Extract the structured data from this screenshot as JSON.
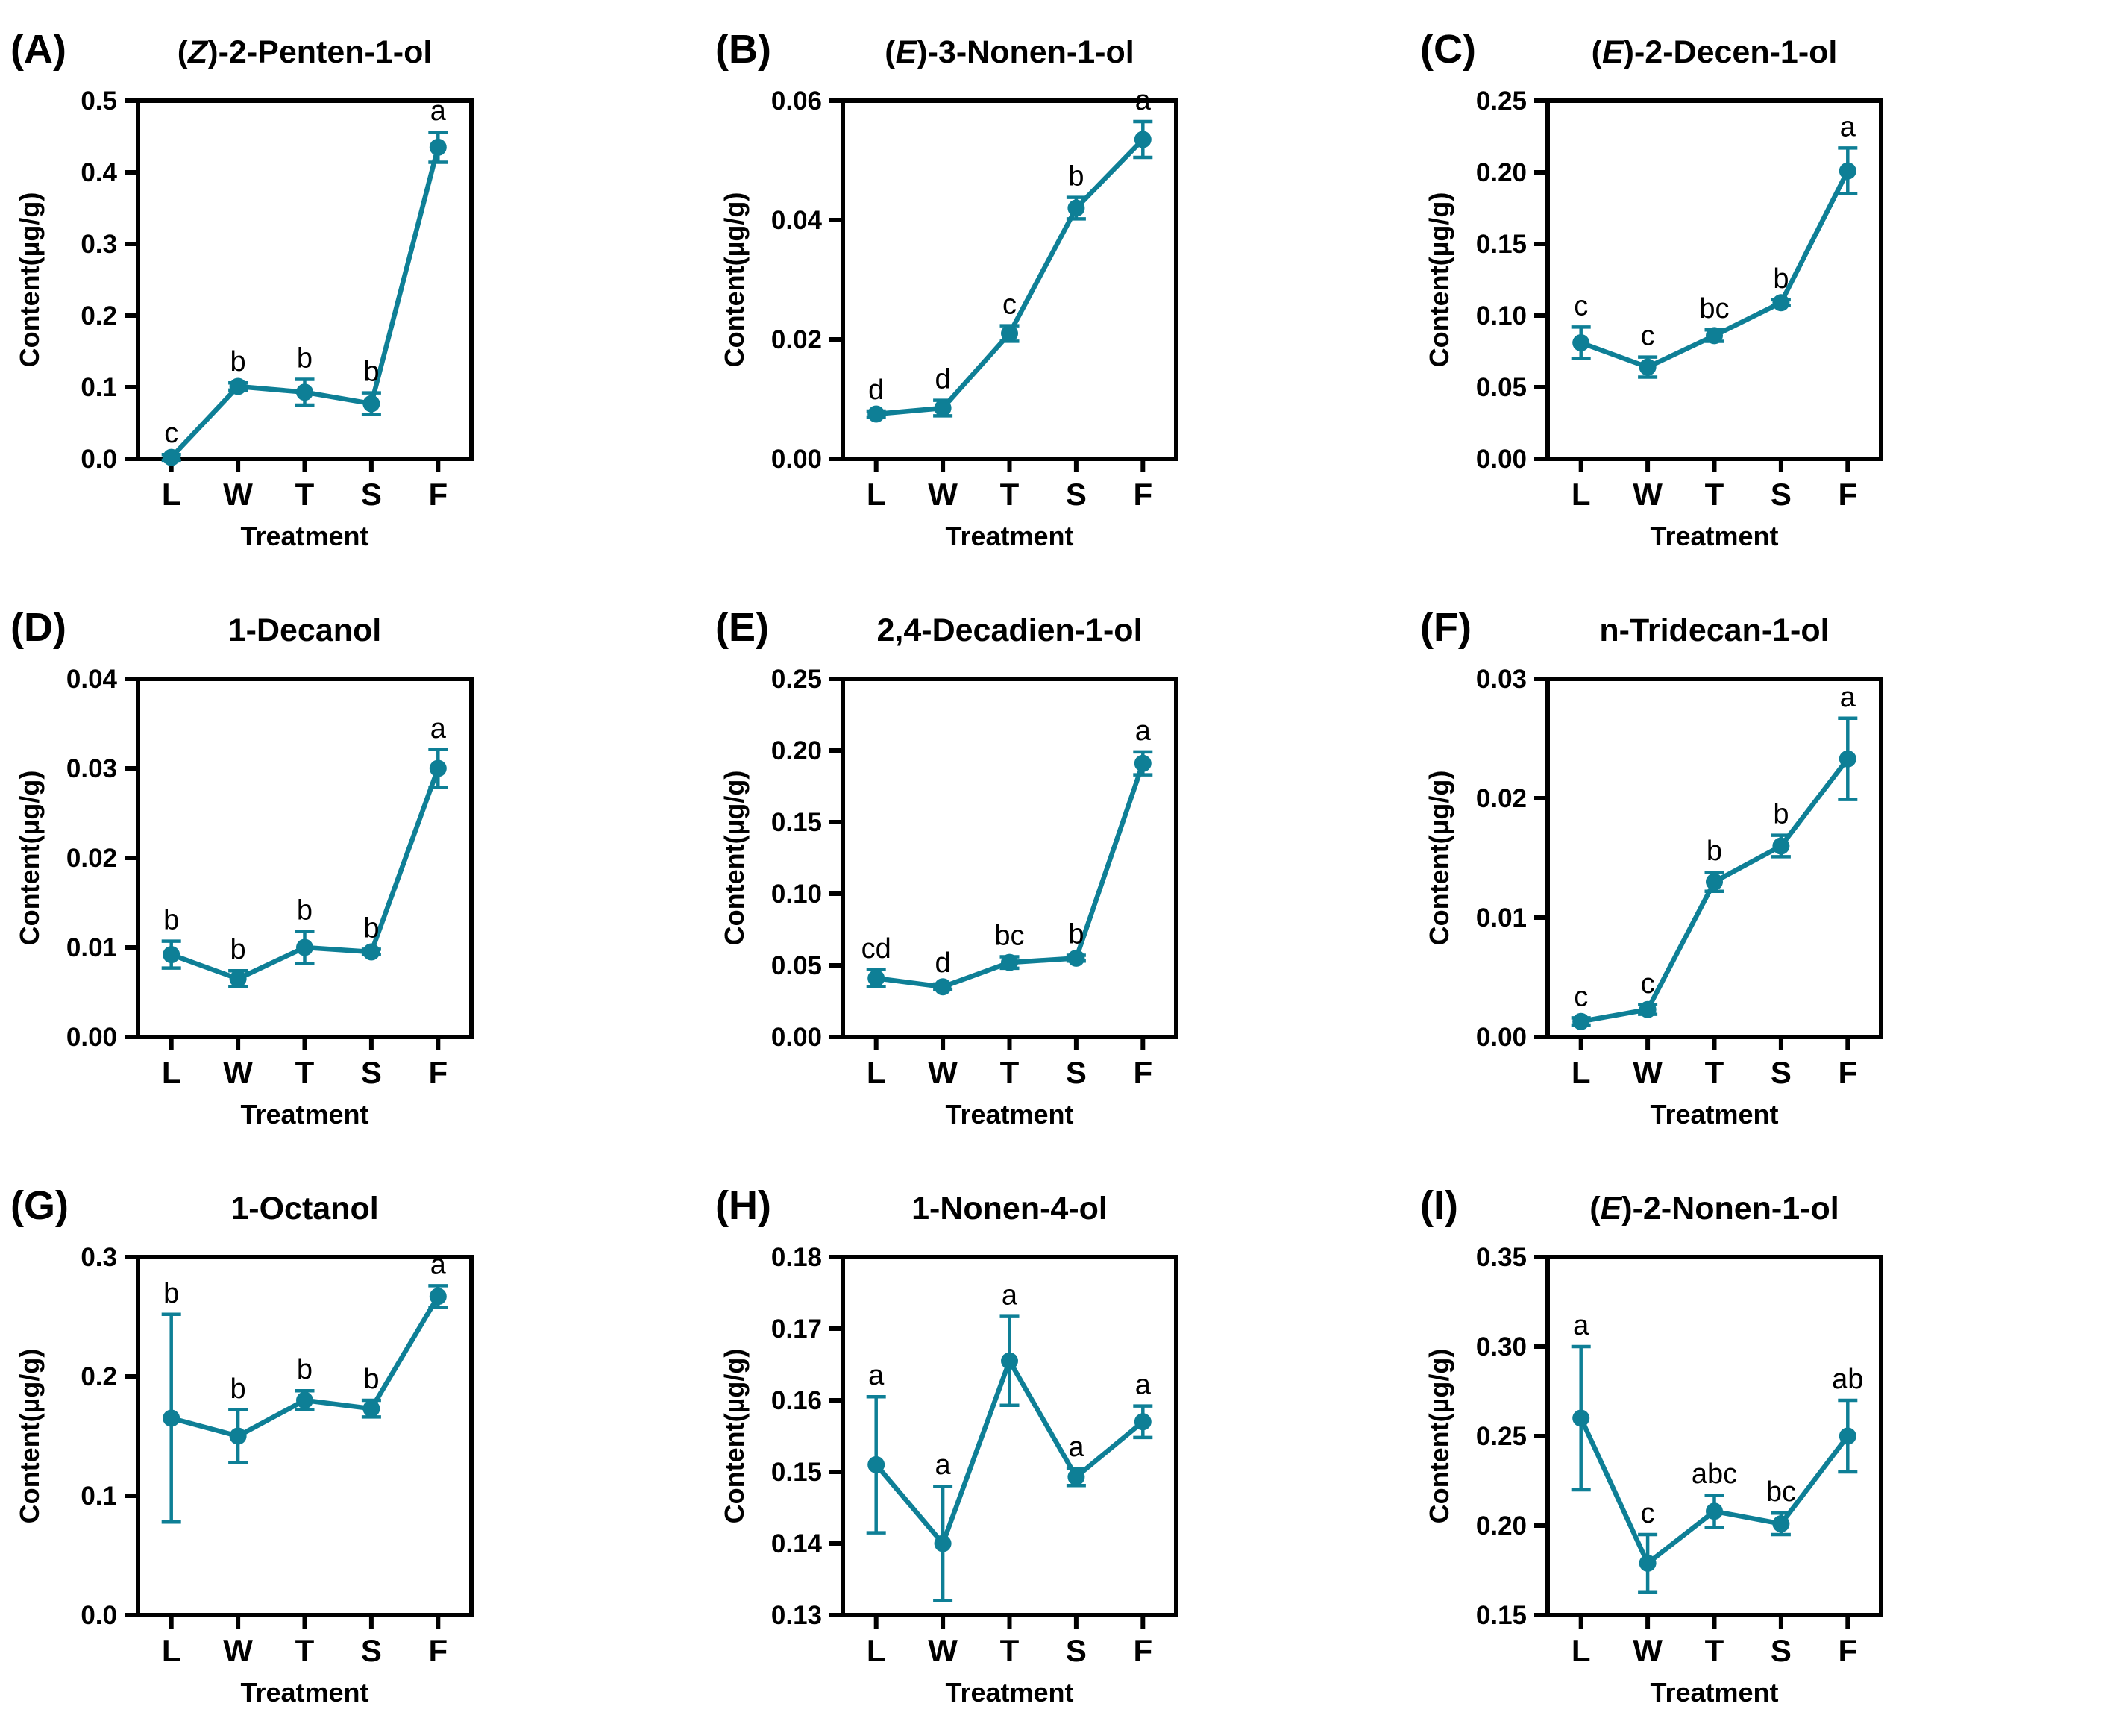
{
  "figure": {
    "background": "#ffffff",
    "text_color": "#000000",
    "accent_color": "#0e7f96",
    "xlabel": "Treatment",
    "ylabel": "Content(µg/g)",
    "categories": [
      "L",
      "W",
      "T",
      "S",
      "F"
    ]
  },
  "chart_data": [
    {
      "type": "line",
      "panel_label": "(A)",
      "title": [
        {
          "text": "(",
          "italic": false
        },
        {
          "text": "Z",
          "italic": true
        },
        {
          "text": ")-2-Penten-1-ol",
          "italic": false
        }
      ],
      "xlabel": "Treatment",
      "ylabel": "Content(µg/g)",
      "categories": [
        "L",
        "W",
        "T",
        "S",
        "F"
      ],
      "values": [
        0.002,
        0.101,
        0.093,
        0.077,
        0.435
      ],
      "errors": [
        0.004,
        0.005,
        0.018,
        0.015,
        0.021
      ],
      "sig_letters": [
        "c",
        "b",
        "b",
        "b",
        "a"
      ],
      "ylim": [
        0,
        0.5
      ],
      "yticks": [
        0,
        0.1,
        0.2,
        0.3,
        0.4,
        0.5
      ],
      "ytick_decimals": 1,
      "legend": "none",
      "grid": false
    },
    {
      "type": "line",
      "panel_label": "(B)",
      "title": [
        {
          "text": "(",
          "italic": false
        },
        {
          "text": "E",
          "italic": true
        },
        {
          "text": ")-3-Nonen-1-ol",
          "italic": false
        }
      ],
      "xlabel": "Treatment",
      "ylabel": "Content(µg/g)",
      "categories": [
        "L",
        "W",
        "T",
        "S",
        "F"
      ],
      "values": [
        0.0075,
        0.0085,
        0.021,
        0.042,
        0.0535
      ],
      "errors": [
        0.0005,
        0.0013,
        0.0013,
        0.0018,
        0.003
      ],
      "sig_letters": [
        "d",
        "d",
        "c",
        "b",
        "a"
      ],
      "ylim": [
        0,
        0.06
      ],
      "yticks": [
        0,
        0.02,
        0.04,
        0.06
      ],
      "ytick_decimals": 2,
      "legend": "none",
      "grid": false
    },
    {
      "type": "line",
      "panel_label": "(C)",
      "title": [
        {
          "text": "(",
          "italic": false
        },
        {
          "text": "E",
          "italic": true
        },
        {
          "text": ")-2-Decen-1-ol",
          "italic": false
        }
      ],
      "xlabel": "Treatment",
      "ylabel": "Content(µg/g)",
      "categories": [
        "L",
        "W",
        "T",
        "S",
        "F"
      ],
      "values": [
        0.081,
        0.064,
        0.086,
        0.109,
        0.201
      ],
      "errors": [
        0.011,
        0.007,
        0.004,
        0.002,
        0.016
      ],
      "sig_letters": [
        "c",
        "c",
        "bc",
        "b",
        "a"
      ],
      "ylim": [
        0,
        0.25
      ],
      "yticks": [
        0,
        0.05,
        0.1,
        0.15,
        0.2,
        0.25
      ],
      "ytick_decimals": 2,
      "legend": "none",
      "grid": false
    },
    {
      "type": "line",
      "panel_label": "(D)",
      "title": [
        {
          "text": "1-Decanol",
          "italic": false
        }
      ],
      "xlabel": "Treatment",
      "ylabel": "Content(µg/g)",
      "categories": [
        "L",
        "W",
        "T",
        "S",
        "F"
      ],
      "values": [
        0.0092,
        0.0065,
        0.01,
        0.0095,
        0.03
      ],
      "errors": [
        0.0015,
        0.0009,
        0.0018,
        0.0003,
        0.0021
      ],
      "sig_letters": [
        "b",
        "b",
        "b",
        "b",
        "a"
      ],
      "ylim": [
        0,
        0.04
      ],
      "yticks": [
        0,
        0.01,
        0.02,
        0.03,
        0.04
      ],
      "ytick_decimals": 2,
      "legend": "none",
      "grid": false
    },
    {
      "type": "line",
      "panel_label": "(E)",
      "title": [
        {
          "text": "2,4-Decadien-1-ol",
          "italic": false
        }
      ],
      "xlabel": "Treatment",
      "ylabel": "Content(µg/g)",
      "categories": [
        "L",
        "W",
        "T",
        "S",
        "F"
      ],
      "values": [
        0.041,
        0.035,
        0.052,
        0.055,
        0.191
      ],
      "errors": [
        0.006,
        0.002,
        0.004,
        0.002,
        0.008
      ],
      "sig_letters": [
        "cd",
        "d",
        "bc",
        "b",
        "a"
      ],
      "ylim": [
        0,
        0.25
      ],
      "yticks": [
        0,
        0.05,
        0.1,
        0.15,
        0.2,
        0.25
      ],
      "ytick_decimals": 2,
      "legend": "none",
      "grid": false
    },
    {
      "type": "line",
      "panel_label": "(F)",
      "title": [
        {
          "text": "n-Tridecan-1-ol",
          "italic": false
        }
      ],
      "xlabel": "Treatment",
      "ylabel": "Content(µg/g)",
      "categories": [
        "L",
        "W",
        "T",
        "S",
        "F"
      ],
      "values": [
        0.0013,
        0.0023,
        0.013,
        0.016,
        0.0233
      ],
      "errors": [
        0.0003,
        0.0004,
        0.0008,
        0.0009,
        0.0034
      ],
      "sig_letters": [
        "c",
        "c",
        "b",
        "b",
        "a"
      ],
      "ylim": [
        0,
        0.03
      ],
      "yticks": [
        0,
        0.01,
        0.02,
        0.03
      ],
      "ytick_decimals": 2,
      "legend": "none",
      "grid": false
    },
    {
      "type": "line",
      "panel_label": "(G)",
      "title": [
        {
          "text": "1-Octanol",
          "italic": false
        }
      ],
      "xlabel": "Treatment",
      "ylabel": "Content(µg/g)",
      "categories": [
        "L",
        "W",
        "T",
        "S",
        "F"
      ],
      "values": [
        0.165,
        0.15,
        0.18,
        0.173,
        0.267
      ],
      "errors": [
        0.087,
        0.022,
        0.008,
        0.007,
        0.009
      ],
      "sig_letters": [
        "b",
        "b",
        "b",
        "b",
        "a"
      ],
      "ylim": [
        0,
        0.3
      ],
      "yticks": [
        0,
        0.1,
        0.2,
        0.3
      ],
      "ytick_decimals": 1,
      "legend": "none",
      "grid": false
    },
    {
      "type": "line",
      "panel_label": "(H)",
      "title": [
        {
          "text": "1-Nonen-4-ol",
          "italic": false
        }
      ],
      "xlabel": "Treatment",
      "ylabel": "Content(µg/g)",
      "categories": [
        "L",
        "W",
        "T",
        "S",
        "F"
      ],
      "values": [
        0.151,
        0.14,
        0.1655,
        0.1493,
        0.157
      ],
      "errors": [
        0.0095,
        0.008,
        0.0062,
        0.0012,
        0.0022
      ],
      "sig_letters": [
        "a",
        "a",
        "a",
        "a",
        "a"
      ],
      "ylim": [
        0.13,
        0.18
      ],
      "yticks": [
        0.13,
        0.14,
        0.15,
        0.16,
        0.17,
        0.18
      ],
      "ytick_decimals": 2,
      "legend": "none",
      "grid": false
    },
    {
      "type": "line",
      "panel_label": "(I)",
      "title": [
        {
          "text": "(",
          "italic": false
        },
        {
          "text": "E",
          "italic": true
        },
        {
          "text": ")-2-Nonen-1-ol",
          "italic": false
        }
      ],
      "xlabel": "Treatment",
      "ylabel": "Content(µg/g)",
      "categories": [
        "L",
        "W",
        "T",
        "S",
        "F"
      ],
      "values": [
        0.26,
        0.179,
        0.208,
        0.201,
        0.25
      ],
      "errors": [
        0.04,
        0.016,
        0.009,
        0.006,
        0.02
      ],
      "sig_letters": [
        "a",
        "c",
        "abc",
        "bc",
        "ab"
      ],
      "ylim": [
        0.15,
        0.35
      ],
      "yticks": [
        0.15,
        0.2,
        0.25,
        0.3,
        0.35
      ],
      "ytick_decimals": 2,
      "legend": "none",
      "grid": false
    }
  ]
}
